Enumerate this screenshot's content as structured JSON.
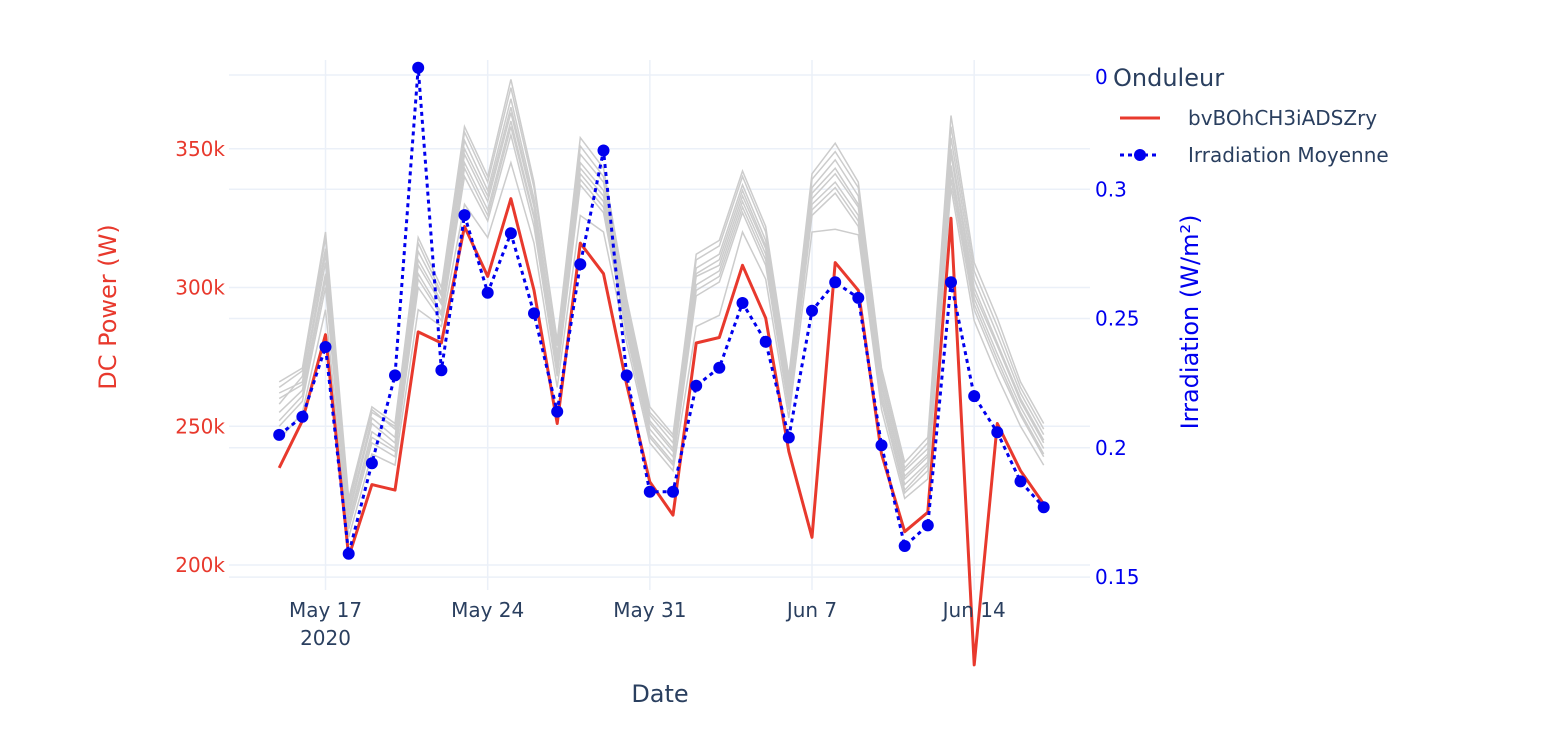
{
  "chart_data": {
    "type": "line",
    "title": "",
    "xlabel": "Date",
    "ylabel_left": "DC Power (W)",
    "ylabel_right": "Irradiation (W/m²)",
    "x": [
      "2020-05-15",
      "2020-05-16",
      "2020-05-17",
      "2020-05-18",
      "2020-05-19",
      "2020-05-20",
      "2020-05-21",
      "2020-05-22",
      "2020-05-23",
      "2020-05-24",
      "2020-05-25",
      "2020-05-26",
      "2020-05-27",
      "2020-05-28",
      "2020-05-29",
      "2020-05-30",
      "2020-05-31",
      "2020-06-01",
      "2020-06-02",
      "2020-06-03",
      "2020-06-04",
      "2020-06-05",
      "2020-06-06",
      "2020-06-07",
      "2020-06-08",
      "2020-06-09",
      "2020-06-10",
      "2020-06-11",
      "2020-06-12",
      "2020-06-13",
      "2020-06-14",
      "2020-06-15",
      "2020-06-16",
      "2020-06-17"
    ],
    "x_ticks": [
      {
        "date": "2020-05-17",
        "label": "May 17",
        "sublabel": "2020"
      },
      {
        "date": "2020-05-24",
        "label": "May 24",
        "sublabel": ""
      },
      {
        "date": "2020-05-31",
        "label": "May 31",
        "sublabel": ""
      },
      {
        "date": "2020-06-07",
        "label": "Jun 7",
        "sublabel": ""
      },
      {
        "date": "2020-06-14",
        "label": "Jun 14",
        "sublabel": ""
      }
    ],
    "x_range": [
      "2020-05-12T20:00",
      "2020-06-19T00:00"
    ],
    "y_left": {
      "range": [
        191000,
        382000
      ],
      "ticks": [
        200000,
        250000,
        300000,
        350000
      ],
      "tick_labels": [
        "200k",
        "250k",
        "300k",
        "350k"
      ],
      "color": "#e8392d"
    },
    "y_right": {
      "range": [
        0.145,
        0.35
      ],
      "ticks": [
        0.15,
        0.2,
        0.25,
        0.3
      ],
      "tick_labels": [
        "0.15",
        "0.2",
        "0.25",
        "0.3"
      ],
      "top_label": "0",
      "color": "#0000ee"
    },
    "grid": true,
    "legend": {
      "title": "Onduleur",
      "placement": "top-right",
      "entries": [
        "bvBOhCH3iADSZry",
        "Irradiation Moyenne"
      ]
    },
    "series": [
      {
        "name": "bvBOhCH3iADSZry",
        "axis": "left",
        "color": "#e8392d",
        "style": "solid",
        "values": [
          235000,
          252000,
          283000,
          203000,
          229000,
          227000,
          284000,
          280000,
          322000,
          304000,
          332000,
          299000,
          251000,
          316000,
          305000,
          265000,
          230000,
          218000,
          280000,
          282000,
          308000,
          289000,
          241000,
          210000,
          309000,
          299000,
          240000,
          212000,
          219000,
          325000,
          164000,
          251000,
          234000,
          222000
        ]
      },
      {
        "name": "Irradiation Moyenne",
        "axis": "right",
        "color": "#0000ee",
        "style": "dot",
        "markers": true,
        "values": [
          0.205,
          0.212,
          0.239,
          0.159,
          0.194,
          0.228,
          0.347,
          0.23,
          0.29,
          0.26,
          0.283,
          0.252,
          0.214,
          0.271,
          0.315,
          0.228,
          0.183,
          0.183,
          0.224,
          0.231,
          0.256,
          0.241,
          0.204,
          0.253,
          0.264,
          0.258,
          0.201,
          0.162,
          0.17,
          0.264,
          0.22,
          0.206,
          0.187,
          0.177
        ]
      }
    ],
    "other_inverters": {
      "color": "#cccccc",
      "style": "solid",
      "series": [
        [
          262000,
          266000,
          312000,
          219000,
          253000,
          246000,
          310000,
          295000,
          350000,
          333000,
          365000,
          330000,
          274000,
          345000,
          335000,
          290000,
          252000,
          242000,
          305000,
          310000,
          335000,
          315000,
          262000,
          334000,
          343000,
          330000,
          265000,
          232000,
          240000,
          350000,
          300000,
          280000,
          260000,
          245000
        ],
        [
          258000,
          268000,
          318000,
          221000,
          256000,
          249000,
          316000,
          298000,
          356000,
          338000,
          372000,
          336000,
          279000,
          351000,
          340000,
          294000,
          255000,
          246000,
          310000,
          315000,
          340000,
          320000,
          266000,
          339000,
          349000,
          336000,
          269000,
          235000,
          244000,
          358000,
          306000,
          286000,
          264000,
          249000
        ],
        [
          255000,
          263000,
          305000,
          216000,
          248000,
          242000,
          305000,
          291000,
          345000,
          328000,
          360000,
          326000,
          271000,
          341000,
          331000,
          287000,
          249000,
          239000,
          301000,
          306000,
          331000,
          312000,
          259000,
          330000,
          338000,
          326000,
          262000,
          229000,
          237000,
          344000,
          296000,
          276000,
          257000,
          242000
        ],
        [
          264000,
          270000,
          314000,
          223000,
          255000,
          250000,
          313000,
          297000,
          353000,
          335000,
          368000,
          332000,
          276000,
          348000,
          338000,
          292000,
          254000,
          244000,
          307000,
          312000,
          337000,
          317000,
          264000,
          336000,
          346000,
          333000,
          267000,
          234000,
          242000,
          354000,
          303000,
          283000,
          262000,
          247000
        ],
        [
          250000,
          259000,
          300000,
          213000,
          244000,
          239000,
          300000,
          288000,
          340000,
          324000,
          355000,
          322000,
          268000,
          337000,
          327000,
          283000,
          246000,
          236000,
          297000,
          302000,
          327000,
          308000,
          256000,
          326000,
          334000,
          322000,
          259000,
          226000,
          234000,
          339000,
          292000,
          272000,
          254000,
          239000
        ],
        [
          260000,
          265000,
          309000,
          218000,
          251000,
          244000,
          308000,
          294000,
          348000,
          331000,
          363000,
          329000,
          273000,
          343000,
          333000,
          289000,
          251000,
          241000,
          304000,
          308000,
          333000,
          314000,
          261000,
          332000,
          341000,
          329000,
          264000,
          231000,
          239000,
          348000,
          298000,
          279000,
          259000,
          244000
        ],
        [
          245000,
          255000,
          292000,
          210000,
          240000,
          236000,
          292000,
          286000,
          330000,
          318000,
          345000,
          316000,
          264000,
          326000,
          320000,
          280000,
          244000,
          234000,
          286000,
          290000,
          320000,
          303000,
          253000,
          320000,
          321000,
          319000,
          256000,
          224000,
          231000,
          336000,
          288000,
          268000,
          250000,
          236000
        ],
        [
          266000,
          271000,
          320000,
          224000,
          257000,
          251000,
          318000,
          300000,
          358000,
          340000,
          375000,
          338000,
          281000,
          354000,
          343000,
          296000,
          257000,
          247000,
          312000,
          317000,
          342000,
          322000,
          268000,
          341000,
          352000,
          338000,
          271000,
          237000,
          246000,
          362000,
          309000,
          289000,
          266000,
          251000
        ],
        [
          252000,
          261000,
          303000,
          215000,
          246000,
          241000,
          303000,
          290000,
          343000,
          326000,
          358000,
          325000,
          270000,
          339000,
          329000,
          285000,
          247000,
          237000,
          299000,
          304000,
          329000,
          310000,
          257000,
          328000,
          336000,
          324000,
          260000,
          227000,
          236000,
          342000,
          294000,
          274000,
          255000,
          240000
        ]
      ]
    }
  }
}
